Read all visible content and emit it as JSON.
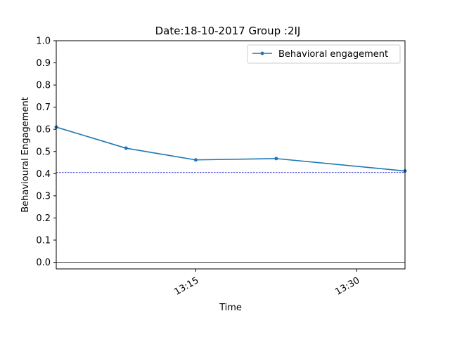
{
  "chart_data": {
    "type": "line",
    "title": "Date:18-10-2017 Group :2IJ",
    "xlabel": "Time",
    "ylabel": "Behavioural Engagement",
    "x_range": [
      "13:02",
      "13:34.5"
    ],
    "x_ticks": [
      "13:15",
      "13:30"
    ],
    "ylim": [
      -0.03,
      1.0
    ],
    "y_ticks": [
      "0.0",
      "0.1",
      "0.2",
      "0.3",
      "0.4",
      "0.5",
      "0.6",
      "0.7",
      "0.8",
      "0.9",
      "1.0"
    ],
    "series": [
      {
        "name": "Behavioral engagement",
        "color": "#1f77b4",
        "x": [
          "13:02",
          "13:08.5",
          "13:15",
          "13:22.5",
          "13:34.5"
        ],
        "y": [
          0.61,
          0.515,
          0.462,
          0.468,
          0.412
        ]
      }
    ],
    "reference_lines": [
      {
        "y": 0.405,
        "color": "#0000cc",
        "style": "dashed"
      },
      {
        "y": 0.0,
        "color": "#000000",
        "style": "solid"
      }
    ],
    "legend_position": "top-right",
    "grid": false
  }
}
